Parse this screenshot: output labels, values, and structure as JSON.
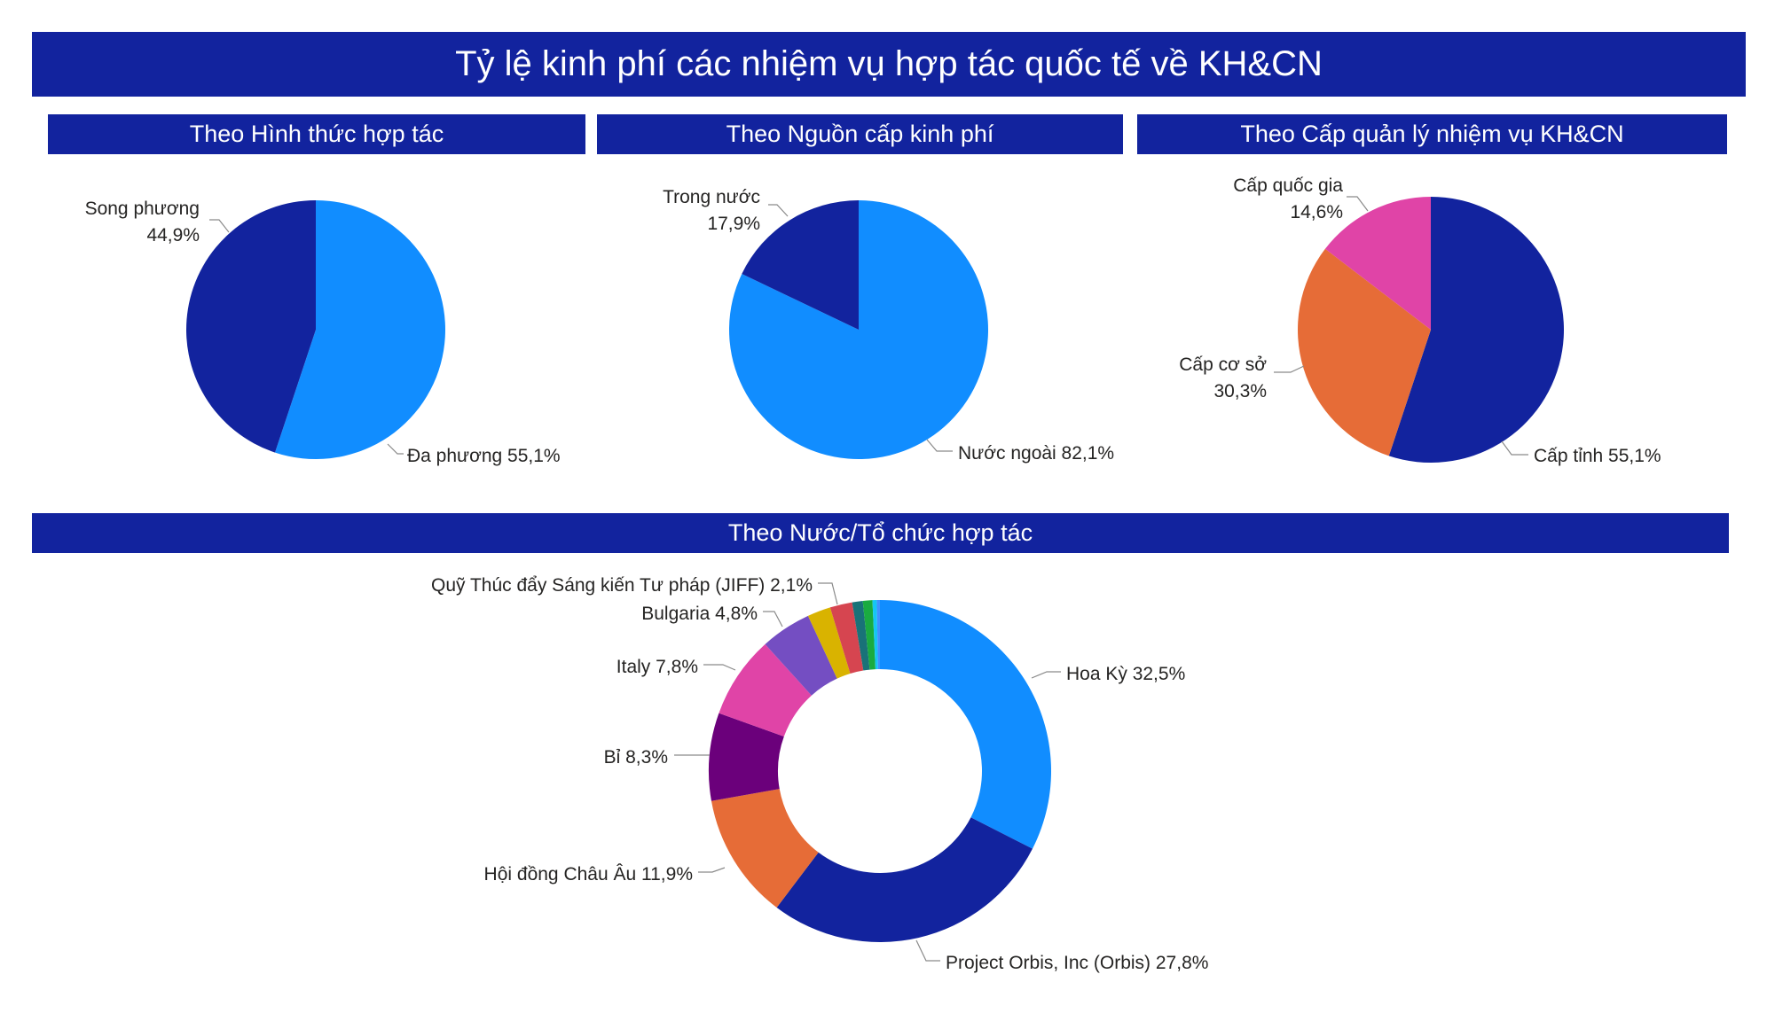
{
  "title": "Tỷ lệ kinh phí các nhiệm vụ hợp tác quốc tế về KH&CN",
  "chart_data": [
    {
      "type": "pie",
      "title": "Theo Hình thức hợp tác",
      "slices": [
        {
          "label": "Đa phương",
          "value": 55.1,
          "value_text": "55,1%",
          "color": "#118dff"
        },
        {
          "label": "Song phương",
          "value": 44.9,
          "value_text": "44,9%",
          "color": "#12239e"
        }
      ]
    },
    {
      "type": "pie",
      "title": "Theo Nguồn cấp kinh phí",
      "slices": [
        {
          "label": "Nước ngoài",
          "value": 82.1,
          "value_text": "82,1%",
          "color": "#118dff"
        },
        {
          "label": "Trong nước",
          "value": 17.9,
          "value_text": "17,9%",
          "color": "#12239e"
        }
      ]
    },
    {
      "type": "pie",
      "title": "Theo Cấp quản lý nhiệm vụ KH&CN",
      "slices": [
        {
          "label": "Cấp tỉnh",
          "value": 55.1,
          "value_text": "55,1%",
          "color": "#12239e"
        },
        {
          "label": "Cấp cơ sở",
          "value": 30.3,
          "value_text": "30,3%",
          "color": "#e66c37"
        },
        {
          "label": "Cấp quốc gia",
          "value": 14.6,
          "value_text": "14,6%",
          "color": "#e044a7"
        }
      ]
    },
    {
      "type": "donut",
      "title": "Theo Nước/Tổ chức hợp tác",
      "slices": [
        {
          "label": "Hoa Kỳ",
          "value": 32.5,
          "value_text": "32,5%",
          "color": "#118dff"
        },
        {
          "label": "Project Orbis, Inc (Orbis)",
          "value": 27.8,
          "value_text": "27,8%",
          "color": "#12239e"
        },
        {
          "label": "Hội đồng Châu Âu",
          "value": 11.9,
          "value_text": "11,9%",
          "color": "#e66c37"
        },
        {
          "label": "Bỉ",
          "value": 8.3,
          "value_text": "8,3%",
          "color": "#6b007b"
        },
        {
          "label": "Italy",
          "value": 7.8,
          "value_text": "7,8%",
          "color": "#e044a7"
        },
        {
          "label": "Bulgaria",
          "value": 4.8,
          "value_text": "4,8%",
          "color": "#744ec2"
        },
        {
          "label": "",
          "value": 2.2,
          "color": "#d9b300"
        },
        {
          "label": "Quỹ Thúc đẩy Sáng kiến Tư pháp (JIFF)",
          "value": 2.1,
          "value_text": "2,1%",
          "color": "#d64550"
        },
        {
          "label": "",
          "value": 1.0,
          "color": "#197278"
        },
        {
          "label": "",
          "value": 0.9,
          "color": "#1aab40"
        },
        {
          "label": "",
          "value": 0.4,
          "color": "#15c6f4"
        },
        {
          "label": "",
          "value": 0.3,
          "color": "#4092ff"
        }
      ]
    }
  ]
}
